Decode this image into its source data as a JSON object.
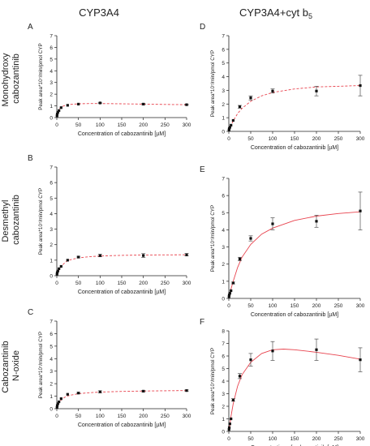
{
  "figure": {
    "column_titles": [
      "CYP3A4",
      "CYP3A4+cyt b",
      "5"
    ],
    "row_labels": [
      [
        "Monohydroxy",
        "cabozantinib"
      ],
      [
        "Desmethyl",
        "cabozantinib"
      ],
      [
        "Cabozantinib",
        "N-oxide"
      ]
    ]
  },
  "colors": {
    "points": "#111111",
    "fit": "#e8434e",
    "axis": "#222222"
  },
  "chart_data": [
    {
      "panel": "A",
      "type": "scatter",
      "fit": "dashed",
      "ylabel": "Peak area*10⁷/min/pmol CYP",
      "xlabel": "Concentration of cabozantinib  [µM]",
      "xlim": [
        0,
        300
      ],
      "ylim": [
        0,
        7
      ],
      "xticks": [
        0,
        50,
        100,
        150,
        200,
        250,
        300
      ],
      "yticks": [
        0,
        1,
        2,
        3,
        4,
        5,
        6,
        7
      ],
      "x": [
        0.5,
        1,
        2.5,
        5,
        10,
        25,
        50,
        100,
        200,
        300
      ],
      "y": [
        0.15,
        0.3,
        0.45,
        0.6,
        0.85,
        1.05,
        1.15,
        1.25,
        1.15,
        1.1
      ],
      "err": [
        0,
        0,
        0,
        0,
        0,
        0,
        0,
        0.05,
        0.05,
        0.05
      ],
      "fit_x": [
        0.5,
        2,
        5,
        10,
        20,
        30,
        50,
        75,
        100,
        150,
        200,
        250,
        300
      ],
      "fit_y": [
        0.1,
        0.4,
        0.7,
        0.9,
        1.05,
        1.12,
        1.18,
        1.2,
        1.2,
        1.18,
        1.15,
        1.12,
        1.1
      ]
    },
    {
      "panel": "B",
      "type": "scatter",
      "fit": "dashed",
      "ylabel": "Peak area*10⁷/min/pmol CYP",
      "xlabel": "Concentration of cabozantinib  [µM]",
      "xlim": [
        0,
        300
      ],
      "ylim": [
        0,
        7
      ],
      "xticks": [
        0,
        50,
        100,
        150,
        200,
        250,
        300
      ],
      "yticks": [
        0,
        1,
        2,
        3,
        4,
        5,
        6,
        7
      ],
      "x": [
        0.5,
        1,
        2.5,
        5,
        10,
        25,
        50,
        100,
        200,
        300
      ],
      "y": [
        0.1,
        0.2,
        0.3,
        0.45,
        0.6,
        1.0,
        1.2,
        1.3,
        1.3,
        1.35
      ],
      "err": [
        0,
        0,
        0,
        0,
        0,
        0,
        0.05,
        0.08,
        0.12,
        0.08
      ],
      "fit_x": [
        0.5,
        2,
        5,
        10,
        20,
        30,
        50,
        75,
        100,
        150,
        200,
        250,
        300
      ],
      "fit_y": [
        0.03,
        0.15,
        0.35,
        0.6,
        0.88,
        1.02,
        1.15,
        1.22,
        1.27,
        1.31,
        1.33,
        1.34,
        1.35
      ]
    },
    {
      "panel": "C",
      "type": "scatter",
      "fit": "dashed",
      "ylabel": "Peak area*10⁷/min/pmol CYP",
      "xlabel": "Concentration of cabozantinib  [µM]",
      "xlim": [
        0,
        300
      ],
      "ylim": [
        0,
        7
      ],
      "xticks": [
        0,
        50,
        100,
        150,
        200,
        250,
        300
      ],
      "yticks": [
        0,
        1,
        2,
        3,
        4,
        5,
        6,
        7
      ],
      "x": [
        0.5,
        1,
        2.5,
        5,
        10,
        25,
        50,
        100,
        200,
        300
      ],
      "y": [
        0.1,
        0.25,
        0.4,
        0.55,
        0.8,
        1.15,
        1.25,
        1.35,
        1.4,
        1.45
      ],
      "err": [
        0,
        0,
        0,
        0,
        0,
        0,
        0.05,
        0.08,
        0.05,
        0.05
      ],
      "fit_x": [
        0.5,
        2,
        5,
        10,
        20,
        30,
        50,
        75,
        100,
        150,
        200,
        250,
        300
      ],
      "fit_y": [
        0.05,
        0.2,
        0.45,
        0.7,
        0.95,
        1.07,
        1.2,
        1.28,
        1.33,
        1.38,
        1.41,
        1.43,
        1.45
      ]
    },
    {
      "panel": "D",
      "type": "scatter",
      "fit": "dashed",
      "ylabel": "Peak area*10⁷/min/pmol CYP",
      "xlabel": "Concentration of cabozantinib  [µM]",
      "xlim": [
        0,
        300
      ],
      "ylim": [
        0,
        7
      ],
      "xticks": [
        0,
        50,
        100,
        150,
        200,
        250,
        300
      ],
      "yticks": [
        0,
        1,
        2,
        3,
        4,
        5,
        6,
        7
      ],
      "x": [
        0.5,
        1,
        2.5,
        5,
        10,
        25,
        50,
        100,
        200,
        300
      ],
      "y": [
        0.1,
        0.2,
        0.3,
        0.45,
        0.8,
        1.8,
        2.45,
        2.95,
        2.95,
        3.35
      ],
      "err": [
        0,
        0,
        0,
        0,
        0,
        0.1,
        0.15,
        0.15,
        0.35,
        0.75
      ],
      "fit_x": [
        0.5,
        2,
        5,
        10,
        20,
        30,
        50,
        75,
        100,
        150,
        200,
        250,
        300
      ],
      "fit_y": [
        0.05,
        0.18,
        0.42,
        0.77,
        1.3,
        1.68,
        2.2,
        2.6,
        2.85,
        3.1,
        3.25,
        3.3,
        3.35
      ]
    },
    {
      "panel": "E",
      "type": "scatter",
      "fit": "solid",
      "ylabel": "Peak area*10⁷/min/pmol CYP",
      "xlabel": "Concentration of cabozantinib  [µM]",
      "xlim": [
        0,
        300
      ],
      "ylim": [
        0,
        7
      ],
      "xticks": [
        0,
        50,
        100,
        150,
        200,
        250,
        300
      ],
      "yticks": [
        0,
        1,
        2,
        3,
        4,
        5,
        6,
        7
      ],
      "x": [
        0.5,
        1,
        2.5,
        5,
        10,
        25,
        50,
        100,
        200,
        300
      ],
      "y": [
        0.1,
        0.2,
        0.3,
        0.45,
        0.9,
        2.3,
        3.5,
        4.35,
        4.5,
        5.1
      ],
      "err": [
        0,
        0,
        0,
        0,
        0.05,
        0.1,
        0.15,
        0.35,
        0.35,
        1.1
      ],
      "fit_x": [
        0.5,
        2,
        5,
        10,
        20,
        30,
        50,
        75,
        100,
        150,
        200,
        250,
        300
      ],
      "fit_y": [
        0.05,
        0.2,
        0.55,
        1.0,
        1.8,
        2.4,
        3.15,
        3.75,
        4.1,
        4.55,
        4.8,
        4.95,
        5.05
      ]
    },
    {
      "panel": "F",
      "type": "scatter",
      "fit": "solid",
      "ylabel": "Peak area*10⁷/min/pmol CYP",
      "xlabel": "Concentration of cabozantinib  [µM]",
      "xlim": [
        0,
        300
      ],
      "ylim": [
        0,
        8
      ],
      "xticks": [
        0,
        50,
        100,
        150,
        200,
        250,
        300
      ],
      "yticks": [
        0,
        1,
        2,
        3,
        4,
        5,
        6,
        7,
        8
      ],
      "x": [
        0.5,
        1,
        2.5,
        5,
        10,
        25,
        50,
        100,
        200,
        300
      ],
      "y": [
        0.15,
        0.3,
        0.6,
        1.0,
        2.5,
        4.4,
        5.7,
        6.4,
        6.5,
        5.7
      ],
      "err": [
        0,
        0,
        0,
        0,
        0.1,
        0.2,
        0.5,
        0.75,
        0.85,
        0.95
      ],
      "fit_x": [
        0.5,
        2,
        5,
        10,
        20,
        30,
        50,
        75,
        100,
        125,
        150,
        200,
        250,
        300
      ],
      "fit_y": [
        0.1,
        0.45,
        1.2,
        2.2,
        3.6,
        4.5,
        5.5,
        6.2,
        6.5,
        6.55,
        6.5,
        6.3,
        6.05,
        5.75
      ]
    }
  ]
}
